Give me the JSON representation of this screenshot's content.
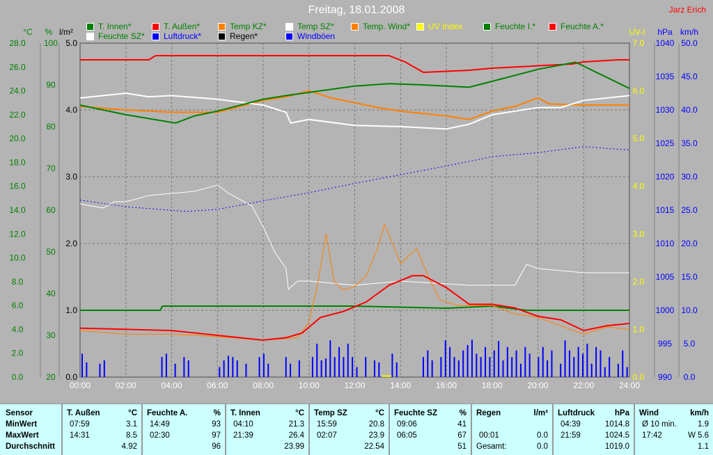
{
  "title": "Freitag, 18.01.2008",
  "author": "Jarz Erich",
  "legend": [
    {
      "label": "T. Innen*",
      "color": "#008000",
      "text": "#008000"
    },
    {
      "label": "T. Außen*",
      "color": "#ff0000",
      "text": "#008000"
    },
    {
      "label": "Temp KZ*",
      "color": "#ff8000",
      "text": "#008000"
    },
    {
      "label": "Temp SZ*",
      "color": "#ffffff",
      "text": "#008000"
    },
    {
      "label": "Temp. Wind*",
      "color": "#ff8000",
      "text": "#008000"
    },
    {
      "label": "UV Index",
      "color": "#ffff00",
      "text": "#ffff00"
    },
    {
      "label": "Feuchte I.*",
      "color": "#008000",
      "text": "#008000"
    },
    {
      "label": "Feuchte A.*",
      "color": "#ff0000",
      "text": "#008000"
    },
    {
      "label": "Feuchte SZ*",
      "color": "#ffffff",
      "text": "#008000"
    },
    {
      "label": "Luftdruck*",
      "color": "#0000ff",
      "text": "#0000ff"
    },
    {
      "label": "Regen*",
      "color": "#000000",
      "text": "#000000"
    },
    {
      "label": "Windböen",
      "color": "#0000ff",
      "text": "#0000ff"
    }
  ],
  "chart_data": {
    "type": "line",
    "title": "Freitag, 18.01.2008",
    "x_ticks": [
      "00:00",
      "02:00",
      "04:00",
      "06:00",
      "08:00",
      "10:00",
      "12:00",
      "14:00",
      "16:00",
      "18:00",
      "20:00",
      "22:00",
      "24:00"
    ],
    "axes": [
      {
        "id": "c",
        "unit": "°C",
        "range": [
          0,
          28
        ],
        "ticks": [
          "0.0",
          "2.0",
          "4.0",
          "6.0",
          "8.0",
          "10.0",
          "12.0",
          "14.0",
          "16.0",
          "18.0",
          "20.0",
          "22.0",
          "24.0",
          "26.0",
          "28.0"
        ],
        "color": "#008000"
      },
      {
        "id": "p",
        "unit": "%",
        "range": [
          20,
          100
        ],
        "ticks": [
          "20",
          "30",
          "40",
          "50",
          "60",
          "70",
          "80",
          "90",
          "100"
        ],
        "color": "#008000"
      },
      {
        "id": "r",
        "unit": "l/m²",
        "range": [
          0,
          5
        ],
        "ticks": [
          "0.0",
          "1.0",
          "2.0",
          "3.0",
          "4.0",
          "5.0"
        ],
        "color": "#000000"
      },
      {
        "id": "uv",
        "unit": "UV-I",
        "range": [
          0,
          7
        ],
        "ticks": [
          "0.0",
          "1.0",
          "2.0",
          "3.0",
          "4.0",
          "5.0",
          "6.0",
          "7.0"
        ],
        "color": "#ffff00"
      },
      {
        "id": "h",
        "unit": "hPa",
        "range": [
          990,
          1040
        ],
        "ticks": [
          "990",
          "995",
          "1000",
          "1005",
          "1010",
          "1015",
          "1020",
          "1025",
          "1030",
          "1035",
          "1040"
        ],
        "color": "#0000ff"
      },
      {
        "id": "w",
        "unit": "km/h",
        "range": [
          0,
          50
        ],
        "ticks": [
          "0.0",
          "5.0",
          "10.0",
          "15.0",
          "20.0",
          "25.0",
          "30.0",
          "35.0",
          "40.0",
          "45.0",
          "50.0"
        ],
        "color": "#0000ff"
      }
    ],
    "series": [
      {
        "name": "Feuchte A.",
        "axis": "p",
        "color": "#ff0000",
        "width": 2,
        "points": [
          [
            0,
            96
          ],
          [
            3,
            96
          ],
          [
            3.3,
            97
          ],
          [
            13.5,
            97
          ],
          [
            14.2,
            95.5
          ],
          [
            15,
            93
          ],
          [
            17,
            93.5
          ],
          [
            18,
            94
          ],
          [
            21.5,
            95
          ],
          [
            22,
            95.5
          ],
          [
            23.5,
            96
          ],
          [
            24,
            96
          ]
        ]
      },
      {
        "name": "Feuchte I.",
        "axis": "p",
        "color": "#008000",
        "width": 2,
        "points": [
          [
            0,
            36
          ],
          [
            3.5,
            36
          ],
          [
            3.6,
            37
          ],
          [
            9,
            37
          ],
          [
            12,
            37
          ],
          [
            16,
            36.5
          ],
          [
            18,
            37
          ],
          [
            19.5,
            36
          ],
          [
            24,
            36
          ]
        ]
      },
      {
        "name": "Feuchte SZ",
        "axis": "p",
        "color": "#ffffff",
        "width": 1,
        "points": [
          [
            0,
            61.5
          ],
          [
            1,
            60.5
          ],
          [
            1.5,
            62
          ],
          [
            2,
            62
          ],
          [
            3,
            63.5
          ],
          [
            4,
            64
          ],
          [
            5,
            64.5
          ],
          [
            6,
            66
          ],
          [
            6.5,
            64
          ],
          [
            7.5,
            61
          ],
          [
            8,
            56
          ],
          [
            8.5,
            50
          ],
          [
            9,
            46
          ],
          [
            9.1,
            41
          ],
          [
            9.5,
            43
          ],
          [
            10,
            43
          ],
          [
            12,
            42
          ],
          [
            14,
            43
          ],
          [
            17,
            42
          ],
          [
            19,
            42
          ],
          [
            19.5,
            47
          ],
          [
            20,
            46
          ],
          [
            22,
            45
          ],
          [
            24,
            45
          ]
        ]
      },
      {
        "name": "Temp KZ",
        "axis": "c",
        "color": "#ff8000",
        "width": 2,
        "points": [
          [
            0,
            22.7
          ],
          [
            2,
            22.4
          ],
          [
            4,
            22.2
          ],
          [
            6,
            22.2
          ],
          [
            8,
            23.2
          ],
          [
            9,
            23.5
          ],
          [
            10,
            24.0
          ],
          [
            11,
            23.4
          ],
          [
            12,
            23.0
          ],
          [
            13,
            22.6
          ],
          [
            14,
            22.3
          ],
          [
            16,
            21.9
          ],
          [
            17,
            21.6
          ],
          [
            18,
            22.3
          ],
          [
            19,
            22.7
          ],
          [
            20,
            23.4
          ],
          [
            20.5,
            22.9
          ],
          [
            22,
            22.8
          ],
          [
            24,
            22.8
          ]
        ]
      },
      {
        "name": "Temp SZ",
        "axis": "c",
        "color": "#ffffff",
        "width": 2,
        "points": [
          [
            0,
            23.4
          ],
          [
            2,
            23.8
          ],
          [
            3,
            23.5
          ],
          [
            4,
            23.6
          ],
          [
            6,
            23.3
          ],
          [
            8,
            22.8
          ],
          [
            9,
            22.2
          ],
          [
            9.2,
            21.3
          ],
          [
            10,
            21.6
          ],
          [
            12,
            21.1
          ],
          [
            14,
            21.0
          ],
          [
            16,
            20.8
          ],
          [
            17,
            21.2
          ],
          [
            18,
            22.0
          ],
          [
            20,
            22.6
          ],
          [
            21,
            22.6
          ],
          [
            22,
            23.2
          ],
          [
            24,
            23.6
          ]
        ]
      },
      {
        "name": "T. Innen",
        "axis": "c",
        "color": "#008000",
        "width": 2,
        "points": [
          [
            0,
            22.8
          ],
          [
            2,
            22.0
          ],
          [
            4.17,
            21.3
          ],
          [
            5,
            21.9
          ],
          [
            6,
            22.3
          ],
          [
            8,
            23.3
          ],
          [
            9,
            23.6
          ],
          [
            12,
            24.4
          ],
          [
            13.5,
            24.6
          ],
          [
            15,
            24.5
          ],
          [
            17,
            24.3
          ],
          [
            18,
            24.8
          ],
          [
            19,
            25.3
          ],
          [
            20,
            25.8
          ],
          [
            21.65,
            26.4
          ],
          [
            22.5,
            25.6
          ],
          [
            24,
            24.2
          ]
        ]
      },
      {
        "name": "Temp. Wind",
        "axis": "c",
        "color": "#ff8000",
        "width": 1,
        "points": [
          [
            0,
            3.9
          ],
          [
            2,
            3.6
          ],
          [
            4,
            3.6
          ],
          [
            6,
            3.4
          ],
          [
            8,
            3.1
          ],
          [
            9.5,
            3.3
          ],
          [
            10,
            4.6
          ],
          [
            10.4,
            8
          ],
          [
            10.75,
            12
          ],
          [
            11.1,
            8
          ],
          [
            11.5,
            7.3
          ],
          [
            12,
            7.6
          ],
          [
            12.5,
            8.5
          ],
          [
            13,
            10.8
          ],
          [
            13.3,
            12.8
          ],
          [
            13.7,
            11
          ],
          [
            14,
            9.5
          ],
          [
            14.7,
            10.8
          ],
          [
            15.2,
            8.5
          ],
          [
            15.7,
            6.5
          ],
          [
            16.5,
            6.0
          ],
          [
            18,
            6.0
          ],
          [
            19,
            5.3
          ],
          [
            20,
            5.0
          ],
          [
            21,
            4.3
          ],
          [
            22,
            3.6
          ],
          [
            23,
            4.2
          ],
          [
            24,
            4.0
          ]
        ]
      },
      {
        "name": "T. Außen",
        "axis": "c",
        "color": "#ff0000",
        "width": 2,
        "points": [
          [
            0,
            4.1
          ],
          [
            2,
            4.0
          ],
          [
            4,
            3.9
          ],
          [
            6,
            3.5
          ],
          [
            7.98,
            3.1
          ],
          [
            9,
            3.3
          ],
          [
            9.7,
            3.7
          ],
          [
            10.5,
            5.0
          ],
          [
            11.5,
            5.5
          ],
          [
            12.5,
            6.3
          ],
          [
            13.5,
            7.7
          ],
          [
            14.52,
            8.5
          ],
          [
            15,
            8.5
          ],
          [
            16,
            7.5
          ],
          [
            17,
            6.1
          ],
          [
            18,
            6.1
          ],
          [
            19,
            5.8
          ],
          [
            20,
            5.1
          ],
          [
            21,
            4.8
          ],
          [
            22,
            3.9
          ],
          [
            23,
            4.3
          ],
          [
            24,
            4.5
          ]
        ]
      },
      {
        "name": "Luftdruck",
        "axis": "h",
        "color": "#0000ff",
        "width": 1,
        "dashed": true,
        "points": [
          [
            0,
            1016.5
          ],
          [
            2,
            1015.5
          ],
          [
            4.65,
            1014.8
          ],
          [
            6,
            1015.1
          ],
          [
            8,
            1016.4
          ],
          [
            10,
            1017.6
          ],
          [
            12,
            1019
          ],
          [
            14,
            1020.3
          ],
          [
            16,
            1021.6
          ],
          [
            18,
            1023
          ],
          [
            20,
            1023.6
          ],
          [
            21.98,
            1024.5
          ],
          [
            24,
            1024
          ]
        ]
      },
      {
        "name": "UV Index",
        "axis": "uv",
        "color": "#ffff00",
        "width": 2,
        "points": [
          [
            13.2,
            0.02
          ],
          [
            13.6,
            0.02
          ]
        ]
      }
    ],
    "windboeen_kmh": [
      3.5,
      2.2,
      0,
      0,
      2,
      2.5,
      0,
      0,
      0,
      0,
      0,
      0,
      0,
      0,
      0,
      0,
      0,
      0,
      3,
      3.5,
      0,
      2,
      0,
      3,
      2.5,
      0,
      0,
      0,
      0,
      0,
      0,
      1.5,
      2.5,
      3.2,
      3,
      2.5,
      0,
      2,
      0,
      0,
      3,
      3.5,
      2,
      0,
      0,
      0,
      3,
      2,
      0,
      2.5,
      0,
      0,
      3,
      5,
      2.5,
      2.8,
      5.5,
      3,
      4.5,
      3,
      5,
      3,
      1.5,
      0,
      3,
      0,
      2.5,
      2.2,
      0,
      0,
      3.5,
      2.2,
      0,
      0,
      0,
      0,
      0,
      3,
      4,
      2.5,
      0,
      3,
      5.5,
      4.5,
      3,
      2.5,
      4,
      4.8,
      5.6,
      3.5,
      3,
      4.5,
      3,
      4,
      5.4,
      2.5,
      4.5,
      3,
      4,
      2,
      4.5,
      3.5,
      0,
      3,
      4.5,
      2.5,
      4,
      0,
      2,
      5.5,
      4,
      3,
      4.5,
      3.5,
      5,
      2,
      4.5,
      4,
      1.5,
      3,
      0,
      2,
      4,
      1.5
    ]
  },
  "table": {
    "row_labels": [
      "Sensor",
      "MinWert",
      "MaxWert",
      "Durchschnitt"
    ],
    "columns": [
      {
        "name": "T. Außen",
        "unit": "°C",
        "min_time": "07:59",
        "min": "3.1",
        "max_time": "14:31",
        "max": "8.5",
        "avg": "4.92"
      },
      {
        "name": "Feuchte A.",
        "unit": "%",
        "min_time": "14:49",
        "min": "93",
        "max_time": "02:30",
        "max": "97",
        "avg": "96"
      },
      {
        "name": "T. Innen",
        "unit": "°C",
        "min_time": "04:10",
        "min": "21.3",
        "max_time": "21:39",
        "max": "26.4",
        "avg": "23.99"
      },
      {
        "name": "Temp SZ",
        "unit": "°C",
        "min_time": "15:59",
        "min": "20.8",
        "max_time": "02:07",
        "max": "23.9",
        "avg": "22.54"
      },
      {
        "name": "Feuchte SZ",
        "unit": "%",
        "min_time": "09:06",
        "min": "41",
        "max_time": "06:05",
        "max": "67",
        "avg": "51"
      },
      {
        "name": "Regen",
        "unit": "l/m²",
        "min_time": "",
        "min": "",
        "max_time": "00:01",
        "max": "0.0",
        "avg_label": "Gesamt:",
        "avg": "0.0"
      },
      {
        "name": "Luftdruck",
        "unit": "hPa",
        "min_time": "04:39",
        "min": "1014.8",
        "max_time": "21:59",
        "max": "1024.5",
        "avg": "1019.0"
      },
      {
        "name": "Wind",
        "unit": "km/h",
        "min_time": "Ø 10 min.",
        "min": "1.9",
        "max_time": "17:42",
        "max": "W 5.6",
        "avg": "1.1"
      }
    ]
  }
}
